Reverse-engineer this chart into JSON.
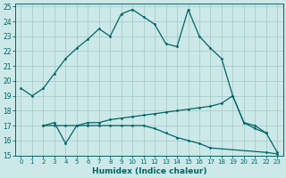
{
  "xlabel": "Humidex (Indice chaleur)",
  "xlim": [
    -0.5,
    23.5
  ],
  "ylim": [
    15,
    25.2
  ],
  "yticks": [
    15,
    16,
    17,
    18,
    19,
    20,
    21,
    22,
    23,
    24,
    25
  ],
  "xticks": [
    0,
    1,
    2,
    3,
    4,
    5,
    6,
    7,
    8,
    9,
    10,
    11,
    12,
    13,
    14,
    15,
    16,
    17,
    18,
    19,
    20,
    21,
    22,
    23
  ],
  "bg_color": "#cce8e8",
  "grid_color": "#aacccc",
  "line_color": "#006666",
  "line1_x": [
    0,
    1,
    2,
    3,
    4,
    5,
    6,
    7,
    8,
    9,
    10,
    11,
    12,
    13,
    14,
    15,
    16,
    17,
    18,
    19,
    20,
    21,
    22
  ],
  "line1_y": [
    19.5,
    19.0,
    19.5,
    20.5,
    21.5,
    22.2,
    22.8,
    23.5,
    23.0,
    24.5,
    24.8,
    24.3,
    23.8,
    22.5,
    22.3,
    24.8,
    23.0,
    22.2,
    21.5,
    19.0,
    17.2,
    16.8,
    16.5
  ],
  "line2_x": [
    2,
    3,
    4,
    5,
    6,
    7,
    8,
    9,
    10,
    11,
    12,
    13,
    14,
    15,
    16,
    17,
    18,
    19,
    20,
    21,
    22,
    23
  ],
  "line2_y": [
    17.0,
    17.2,
    15.8,
    17.0,
    17.2,
    17.2,
    17.4,
    17.5,
    17.6,
    17.7,
    17.8,
    17.9,
    18.0,
    18.1,
    18.2,
    18.3,
    18.5,
    19.0,
    17.2,
    17.0,
    16.5,
    15.2
  ],
  "line3_x": [
    2,
    3,
    4,
    5,
    6,
    7,
    8,
    9,
    10,
    11,
    12,
    13,
    14,
    15,
    16,
    17,
    22,
    23
  ],
  "line3_y": [
    17.0,
    17.0,
    17.0,
    17.0,
    17.0,
    17.0,
    17.0,
    17.0,
    17.0,
    17.0,
    16.8,
    16.5,
    16.2,
    16.0,
    15.8,
    15.5,
    15.2,
    15.1
  ]
}
